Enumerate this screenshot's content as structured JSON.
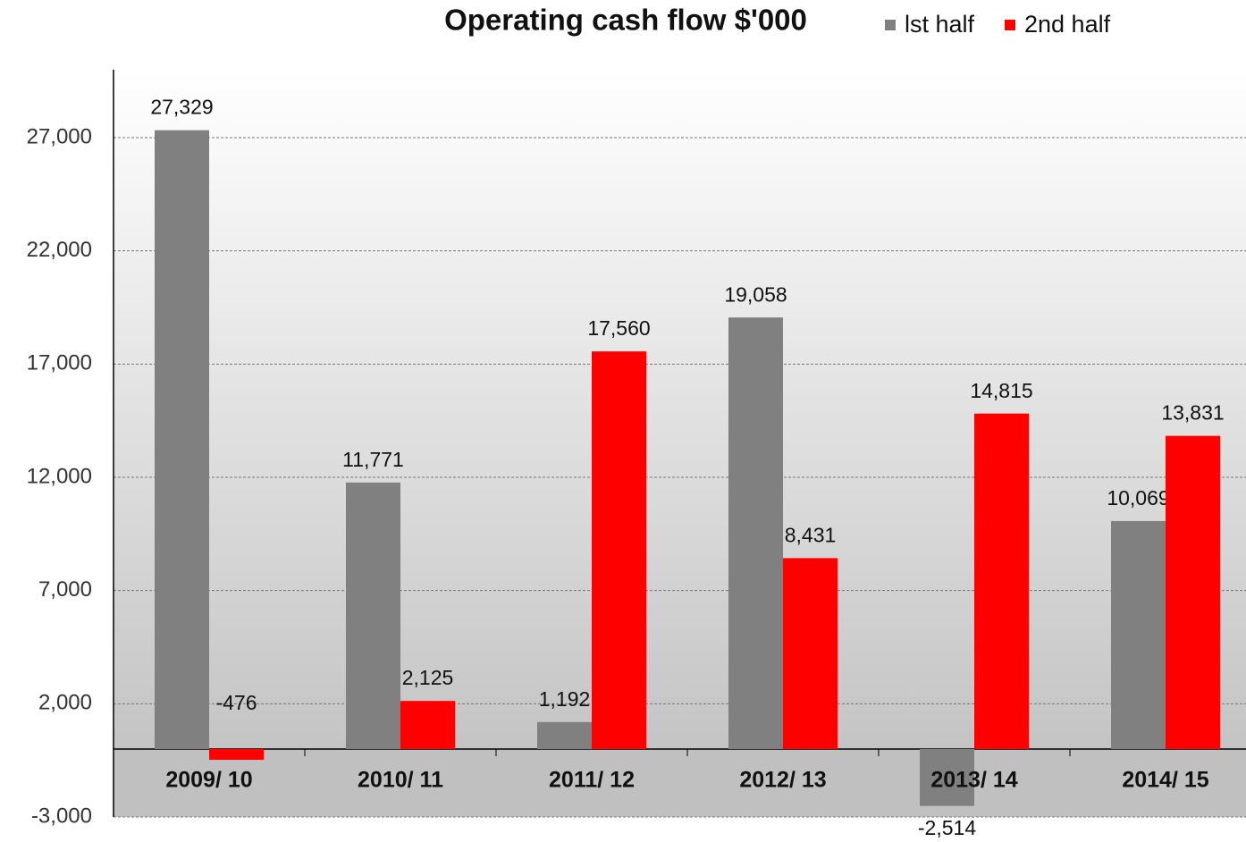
{
  "chart_data": {
    "type": "bar",
    "title": "Operating cash flow $'000",
    "categories": [
      "2009/ 10",
      "2010/ 11",
      "2011/ 12",
      "2012/ 13",
      "2013/ 14",
      "2014/ 15"
    ],
    "series": [
      {
        "name": "lst half",
        "color": "#808080",
        "values": [
          27329,
          11771,
          1192,
          19058,
          -2514,
          10069
        ],
        "value_labels": [
          "27,329",
          "11,771",
          "1,192",
          "19,058",
          "-2,514",
          "10,069"
        ]
      },
      {
        "name": "2nd half",
        "color": "#ff0000",
        "values": [
          -476,
          2125,
          17560,
          8431,
          14815,
          13831
        ],
        "value_labels": [
          "-476",
          "2,125",
          "17,560",
          "8,431",
          "14,815",
          "13,831"
        ]
      }
    ],
    "ylim": [
      -3000,
      30000
    ],
    "yticks": [
      {
        "value": -3000,
        "label": "-3,000"
      },
      {
        "value": 2000,
        "label": "2,000"
      },
      {
        "value": 7000,
        "label": "7,000"
      },
      {
        "value": 12000,
        "label": "12,000"
      },
      {
        "value": 17000,
        "label": "17,000"
      },
      {
        "value": 22000,
        "label": "22,000"
      },
      {
        "value": 27000,
        "label": "27,000"
      }
    ],
    "grid": true,
    "legend": "top"
  }
}
